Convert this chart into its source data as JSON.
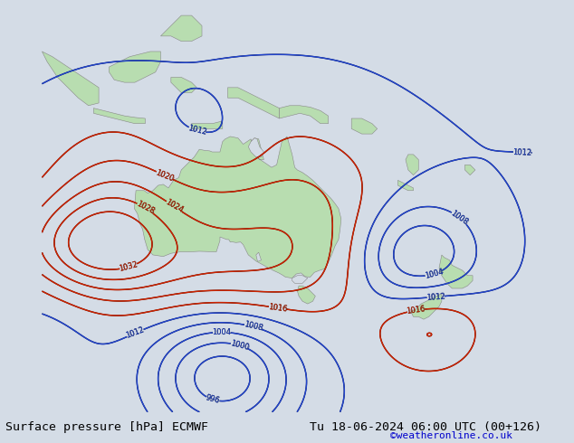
{
  "title_left": "Surface pressure [hPa] ECMWF",
  "title_right": "Tu 18-06-2024 06:00 UTC (00+126)",
  "credit": "©weatheronline.co.uk",
  "background_color": "#d4dce6",
  "land_color": "#b8ddb0",
  "ocean_color": "#d4dce6",
  "fig_width": 6.34,
  "fig_height": 4.9,
  "dpi": 100,
  "title_fontsize": 9.5,
  "credit_color": "#0000cc",
  "credit_fontsize": 8
}
